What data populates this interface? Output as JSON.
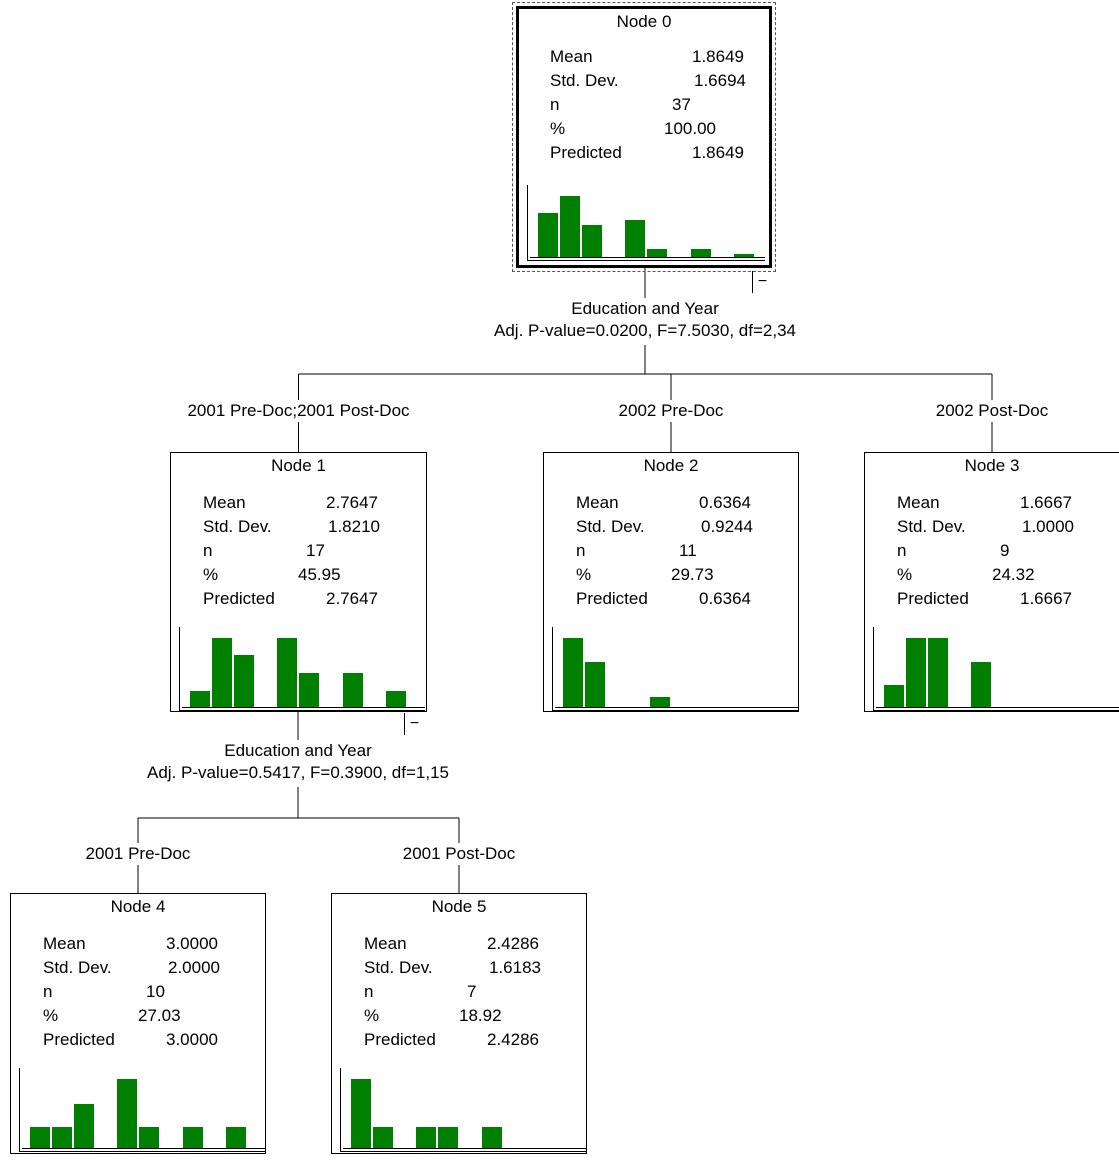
{
  "tree": {
    "nodes": [
      {
        "id": "node0",
        "title": "Node 0",
        "stats": {
          "mean": "1.8649",
          "std_dev": "1.6694",
          "n": "37",
          "percent": "100.00",
          "predicted": "1.8649"
        },
        "histogram": [
          0.72,
          1.0,
          0.54,
          0,
          0.62,
          0.15,
          0,
          0.15,
          0,
          0.06
        ],
        "collapse": "−"
      },
      {
        "id": "node1",
        "title": "Node 1",
        "stats": {
          "mean": "2.7647",
          "std_dev": "1.8210",
          "n": "17",
          "percent": "45.95",
          "predicted": "2.7647"
        },
        "histogram": [
          0.24,
          1.0,
          0.76,
          0,
          1.0,
          0.5,
          0,
          0.5,
          0,
          0.24
        ],
        "collapse": "−"
      },
      {
        "id": "node2",
        "title": "Node 2",
        "stats": {
          "mean": "0.6364",
          "std_dev": "0.9244",
          "n": "11",
          "percent": "29.73",
          "predicted": "0.6364"
        },
        "histogram": [
          1.0,
          0.65,
          0,
          0,
          0.15
        ]
      },
      {
        "id": "node3",
        "title": "Node 3",
        "stats": {
          "mean": "1.6667",
          "std_dev": "1.0000",
          "n": "9",
          "percent": "24.32",
          "predicted": "1.6667"
        },
        "histogram": [
          0.33,
          1.0,
          1.0,
          0,
          0.65
        ]
      },
      {
        "id": "node4",
        "title": "Node 4",
        "stats": {
          "mean": "3.0000",
          "std_dev": "2.0000",
          "n": "10",
          "percent": "27.03",
          "predicted": "3.0000"
        },
        "histogram": [
          0.31,
          0.31,
          0.64,
          0,
          1.0,
          0.31,
          0,
          0.31,
          0,
          0.31
        ]
      },
      {
        "id": "node5",
        "title": "Node 5",
        "stats": {
          "mean": "2.4286",
          "std_dev": "1.6183",
          "n": "7",
          "percent": "18.92",
          "predicted": "2.4286"
        },
        "histogram": [
          1.0,
          0.31,
          0,
          0.31,
          0.31,
          0,
          0.31
        ]
      }
    ],
    "stat_labels": {
      "mean": "Mean",
      "std_dev": "Std. Dev.",
      "n": "n",
      "percent": "%",
      "predicted": "Predicted"
    },
    "splits": [
      {
        "from": "node0",
        "variable": "Education and Year",
        "stats": "Adj. P-value=0.0200, F=7.5030, df=2,34"
      },
      {
        "from": "node1",
        "variable": "Education and Year",
        "stats": "Adj. P-value=0.5417, F=0.3900, df=1,15"
      }
    ],
    "branches": [
      {
        "to": "node1",
        "label": "2001 Pre-Doc;2001 Post-Doc"
      },
      {
        "to": "node2",
        "label": "2002 Pre-Doc"
      },
      {
        "to": "node3",
        "label": "2002 Post-Doc"
      },
      {
        "to": "node4",
        "label": "2001 Pre-Doc"
      },
      {
        "to": "node5",
        "label": "2001 Post-Doc"
      }
    ],
    "bar_color": "#008000"
  }
}
